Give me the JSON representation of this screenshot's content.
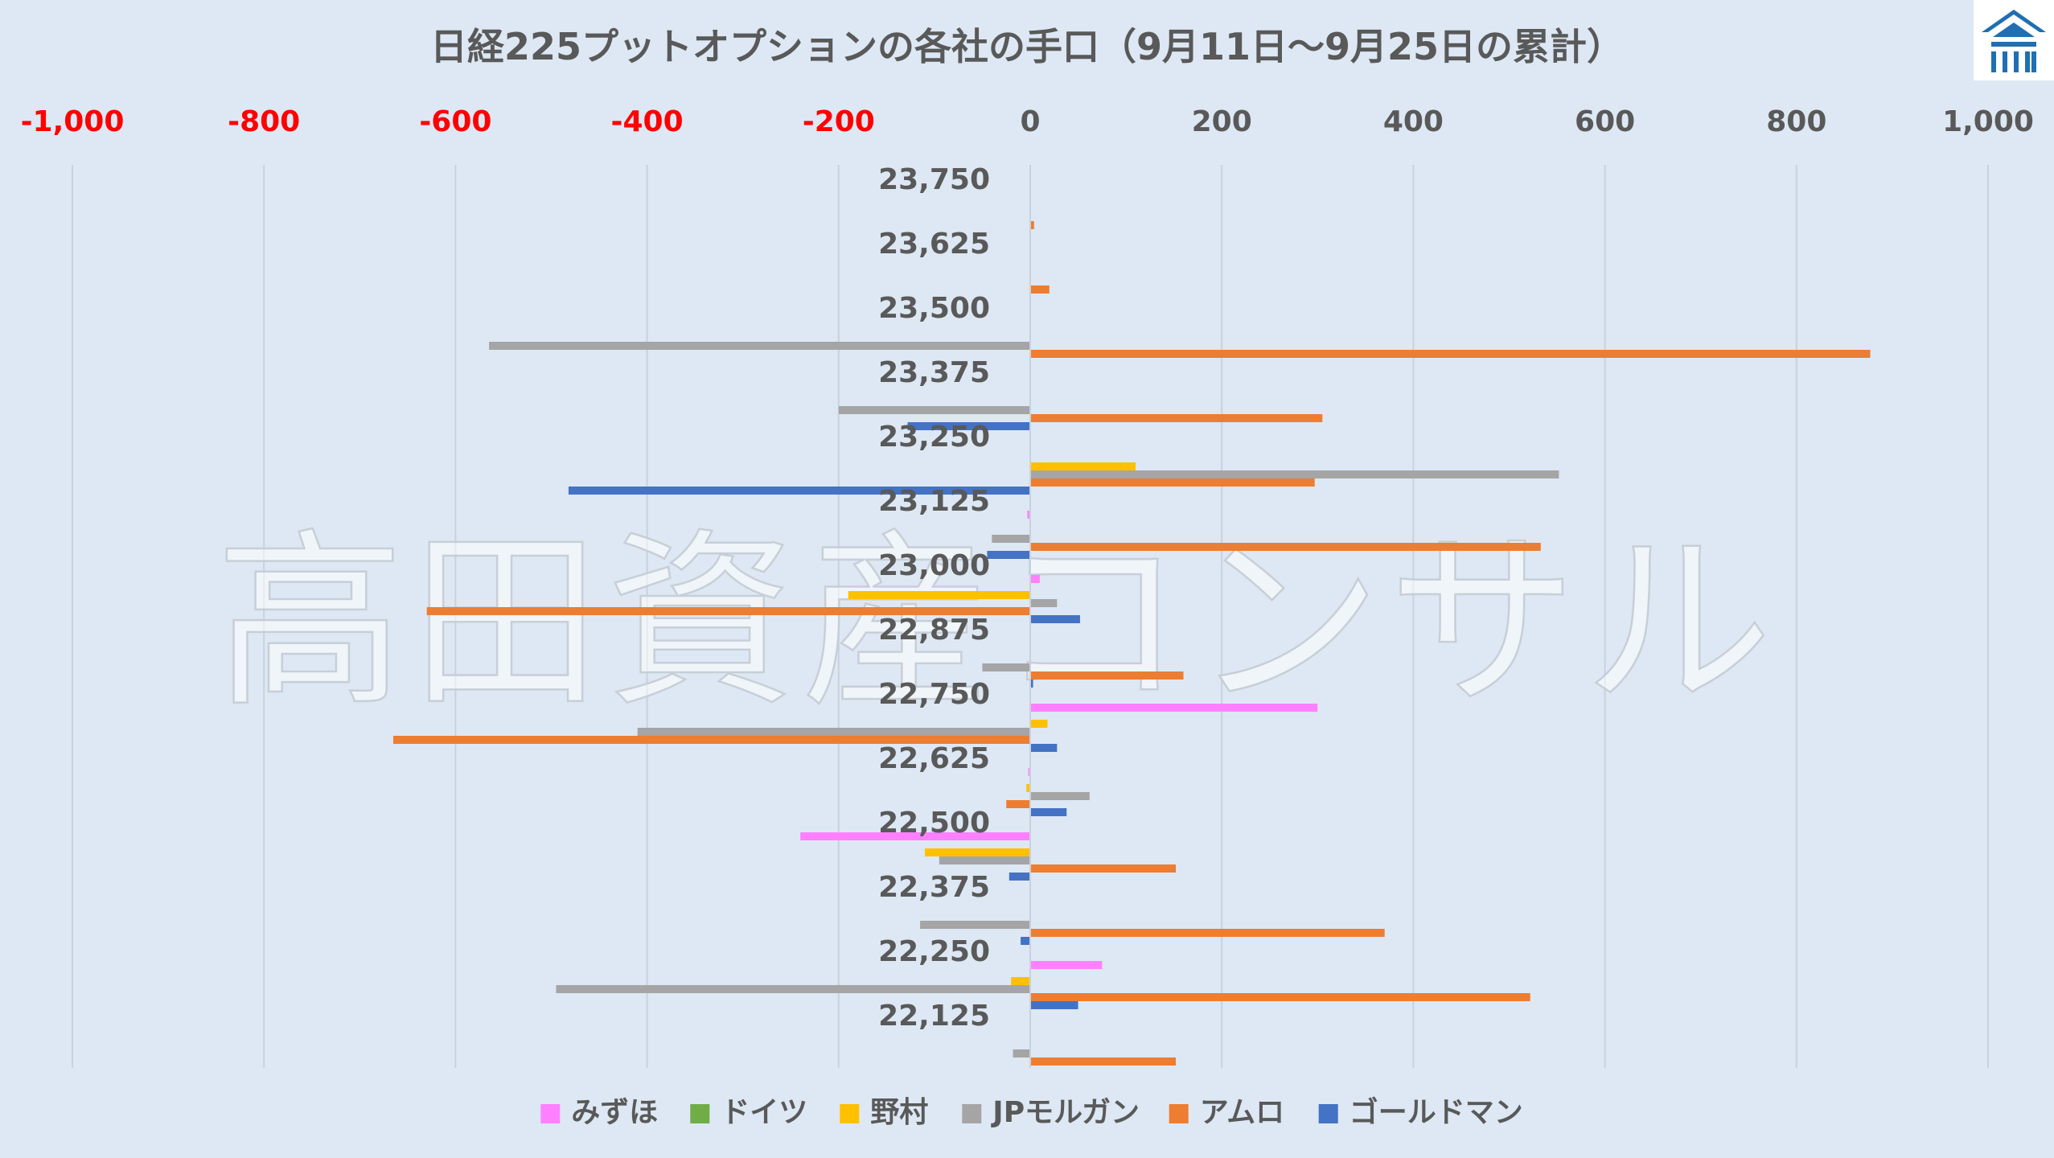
{
  "chart_data": {
    "type": "bar",
    "orientation": "horizontal",
    "title": "日経225プットオプションの各社の手口（9月11日～9月25日の累計）",
    "watermark": "高田資産コンサル",
    "categories": [
      "23,750",
      "23,625",
      "23,500",
      "23,375",
      "23,250",
      "23,125",
      "23,000",
      "22,875",
      "22,750",
      "22,625",
      "22,500",
      "22,375",
      "22,250",
      "22,125"
    ],
    "xlim": [
      -1000,
      1000
    ],
    "xticks": [
      -1000,
      -800,
      -600,
      -400,
      -200,
      0,
      200,
      400,
      600,
      800,
      1000
    ],
    "xtick_labels": [
      "-1,000",
      "-800",
      "-600",
      "-400",
      "-200",
      "0",
      "200",
      "400",
      "600",
      "800",
      "1,000"
    ],
    "negative_tick_color": "#ff0000",
    "positive_tick_color": "#595959",
    "axis_position": "top",
    "grid": true,
    "legend_position": "bottom",
    "series": [
      {
        "name": "みずほ",
        "color": "#ff80ff",
        "values": [
          0,
          0,
          0,
          0,
          0,
          -3,
          10,
          0,
          300,
          -2,
          -240,
          0,
          75,
          0
        ]
      },
      {
        "name": "ドイツ",
        "color": "#70ad47",
        "values": [
          0,
          0,
          0,
          0,
          0,
          0,
          0,
          0,
          0,
          0,
          0,
          0,
          0,
          0
        ]
      },
      {
        "name": "野村",
        "color": "#ffc000",
        "values": [
          0,
          0,
          0,
          0,
          110,
          0,
          -190,
          0,
          18,
          -4,
          -110,
          0,
          -20,
          0
        ]
      },
      {
        "name": "JPモルガン",
        "color": "#a5a5a5",
        "values": [
          0,
          0,
          -565,
          -200,
          552,
          -40,
          28,
          -50,
          -410,
          62,
          -95,
          -115,
          -495,
          -18
        ]
      },
      {
        "name": "アムロ",
        "color": "#ed7d31",
        "values": [
          4,
          20,
          877,
          305,
          297,
          533,
          -630,
          160,
          -665,
          -25,
          152,
          370,
          522,
          152
        ]
      },
      {
        "name": "ゴールドマン",
        "color": "#4472c4",
        "values": [
          0,
          0,
          0,
          -128,
          -482,
          -45,
          52,
          3,
          28,
          38,
          -22,
          -10,
          50,
          0
        ]
      }
    ]
  }
}
